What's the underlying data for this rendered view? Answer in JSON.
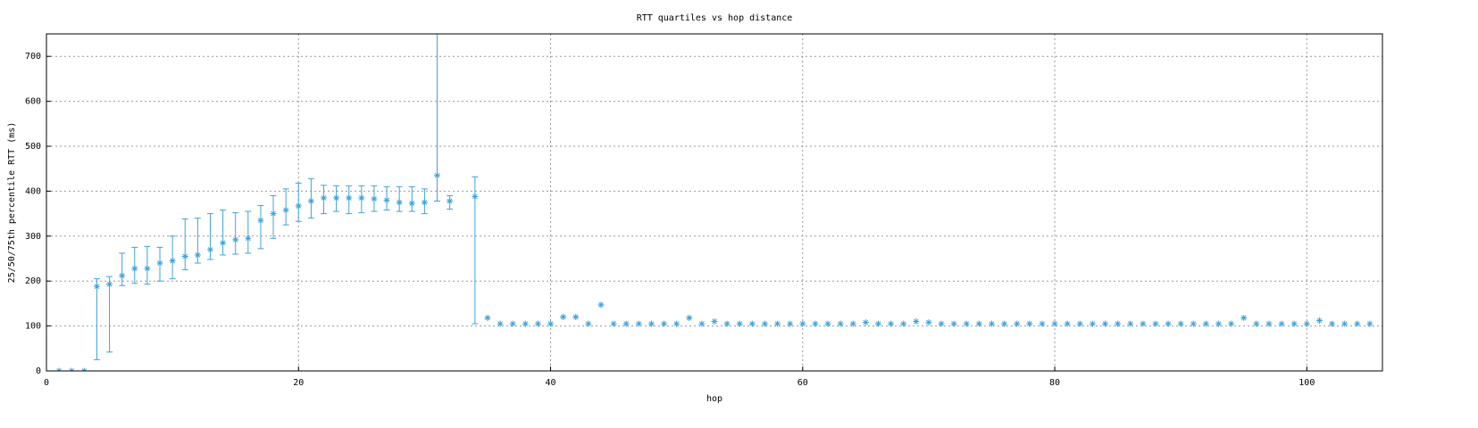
{
  "chart_data": {
    "type": "errorbar",
    "title": "RTT quartiles vs hop distance",
    "x_label": "hop",
    "y_label": "25/50/75th percentile RTT (ms)",
    "color": "#3ea3dc",
    "grid": true,
    "x": [
      1,
      2,
      3,
      4,
      5,
      6,
      7,
      8,
      9,
      10,
      11,
      12,
      13,
      14,
      15,
      16,
      17,
      18,
      19,
      20,
      21,
      22,
      23,
      24,
      25,
      26,
      27,
      28,
      29,
      30,
      31,
      32,
      33,
      34,
      35,
      36,
      37,
      38,
      39,
      40,
      41,
      42,
      43,
      44,
      45,
      46,
      47,
      48,
      49,
      50,
      51,
      52,
      53,
      54,
      55,
      56,
      57,
      58,
      59,
      60,
      61,
      62,
      63,
      64,
      65,
      66,
      67,
      68,
      69,
      70,
      71,
      72,
      73,
      74,
      75,
      76,
      77,
      78,
      79,
      80,
      81,
      82,
      83,
      84,
      85,
      86,
      87,
      88,
      89,
      90,
      91,
      92,
      93,
      94,
      95,
      96,
      97,
      98,
      99,
      100,
      101,
      102,
      103,
      104,
      105
    ],
    "values": [
      0,
      0,
      0,
      188,
      193,
      212,
      228,
      228,
      240,
      245,
      255,
      258,
      270,
      285,
      292,
      295,
      335,
      350,
      358,
      367,
      378,
      385,
      385,
      385,
      385,
      383,
      380,
      375,
      373,
      375,
      435,
      378,
      null,
      388,
      118,
      105,
      105,
      105,
      105,
      105,
      120,
      120,
      105,
      147,
      105,
      105,
      105,
      105,
      105,
      105,
      118,
      105,
      110,
      105,
      105,
      105,
      105,
      105,
      105,
      105,
      105,
      105,
      105,
      105,
      108,
      105,
      105,
      105,
      110,
      108,
      105,
      105,
      105,
      105,
      105,
      105,
      105,
      105,
      105,
      105,
      105,
      105,
      105,
      105,
      105,
      105,
      105,
      105,
      105,
      105,
      105,
      105,
      105,
      105,
      118,
      105,
      105,
      105,
      105,
      105,
      112,
      105,
      105,
      105,
      105
    ],
    "low": [
      null,
      null,
      null,
      25,
      42,
      190,
      195,
      193,
      200,
      205,
      225,
      240,
      248,
      258,
      260,
      262,
      272,
      295,
      325,
      333,
      340,
      350,
      355,
      350,
      352,
      355,
      358,
      355,
      355,
      350,
      378,
      360,
      null,
      105,
      null,
      null,
      null,
      null,
      null,
      null,
      null,
      null,
      null,
      null,
      null,
      null,
      null,
      null,
      null,
      null,
      null,
      null,
      null,
      null,
      null,
      null,
      null,
      null,
      null,
      null,
      null,
      null,
      null,
      null,
      null,
      null,
      null,
      null,
      null,
      null,
      null,
      null,
      null,
      null,
      null,
      null,
      null,
      null,
      null,
      null,
      null,
      null,
      null,
      null,
      null,
      null,
      null,
      null,
      null,
      null,
      null,
      null,
      null,
      null,
      null,
      null,
      null,
      null,
      null,
      null,
      null,
      null,
      null,
      null,
      null
    ],
    "high": [
      null,
      null,
      null,
      205,
      210,
      262,
      275,
      277,
      275,
      300,
      338,
      340,
      350,
      358,
      352,
      355,
      368,
      390,
      405,
      418,
      428,
      413,
      412,
      412,
      412,
      412,
      410,
      410,
      410,
      405,
      800,
      390,
      null,
      432,
      null,
      null,
      null,
      null,
      null,
      null,
      null,
      null,
      null,
      null,
      null,
      null,
      null,
      null,
      null,
      null,
      null,
      null,
      null,
      null,
      null,
      null,
      null,
      null,
      null,
      null,
      null,
      null,
      null,
      null,
      null,
      null,
      null,
      null,
      null,
      null,
      null,
      null,
      null,
      null,
      null,
      null,
      null,
      null,
      null,
      null,
      null,
      null,
      null,
      null,
      null,
      null,
      null,
      null,
      null,
      null,
      null,
      null,
      null,
      null,
      null,
      null,
      null,
      null,
      null,
      null,
      null,
      null,
      null,
      null,
      null
    ],
    "xlim": [
      0,
      106
    ],
    "ylim": [
      0,
      750
    ],
    "xticks": [
      0,
      20,
      40,
      60,
      80,
      100
    ],
    "yticks": [
      0,
      100,
      200,
      300,
      400,
      500,
      600,
      700
    ]
  }
}
